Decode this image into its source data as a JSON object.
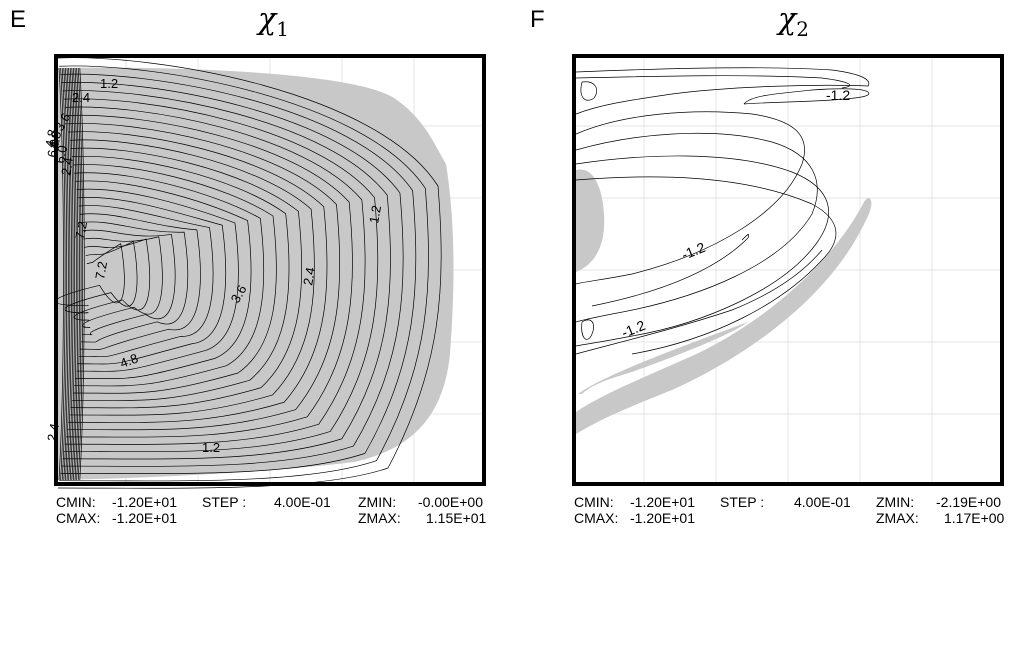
{
  "panels": [
    {
      "letter": "E",
      "title_symbol": "χ",
      "title_sub": "1",
      "fill_color": "#c8c8c8",
      "contour_labels": [
        "1.2",
        "2.4",
        "3.6",
        "4.8",
        "6.0",
        "2.4",
        "4.8",
        "6.0",
        "7.2",
        "7.2",
        "3.6",
        "2.4",
        "1.2",
        "4.8",
        "1.2",
        "2.4"
      ],
      "stats": {
        "cmin_label": "CMIN:",
        "cmin_value": "-1.20E+01",
        "cmax_label": "CMAX:",
        "cmax_value": "-1.20E+01",
        "step_label": "STEP :",
        "step_value": "4.00E-01",
        "zmin_label": "ZMIN:",
        "zmin_value": "-0.00E+00",
        "zmax_label": "ZMAX:",
        "zmax_value": "1.15E+01"
      }
    },
    {
      "letter": "F",
      "title_symbol": "χ",
      "title_sub": "2",
      "fill_color": "#c8c8c8",
      "contour_labels": [
        "-1.2",
        "-1.2",
        "-1.2"
      ],
      "stats": {
        "cmin_label": "CMIN:",
        "cmin_value": "-1.20E+01",
        "cmax_label": "CMAX:",
        "cmax_value": "-1.20E+01",
        "step_label": "STEP :",
        "step_value": "4.00E-01",
        "zmin_label": "ZMIN:",
        "zmin_value": "-2.19E+00",
        "zmax_label": "ZMAX:",
        "zmax_value": "1.17E+00"
      }
    }
  ],
  "chart_data": [
    {
      "type": "heatmap",
      "title": "χ1",
      "contour_step": 0.4,
      "labeled_levels": [
        1.2,
        2.4,
        3.6,
        4.8,
        6.0,
        7.2
      ],
      "zmin": -0.0,
      "zmax": 11.5,
      "cmin": -12.0,
      "cmax": -12.0,
      "shaded_region": "positive values",
      "grid": true
    },
    {
      "type": "heatmap",
      "title": "χ2",
      "contour_step": 0.4,
      "labeled_levels": [
        -1.2
      ],
      "zmin": -2.19,
      "zmax": 1.17,
      "cmin": -12.0,
      "cmax": -12.0,
      "shaded_region": "positive values",
      "grid": true
    }
  ]
}
